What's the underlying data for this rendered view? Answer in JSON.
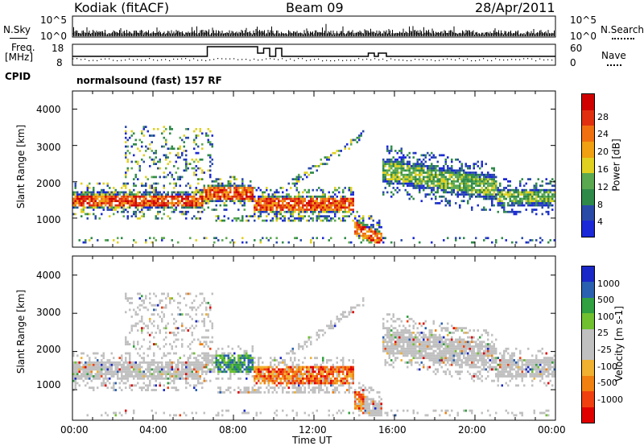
{
  "header": {
    "station": "Kodiak (fitACF)",
    "beam": "Beam 09",
    "date": "28/Apr/2011"
  },
  "top_panels": {
    "nsky_label": "N.Sky",
    "nsky_ticks": [
      "10^5",
      "10^0"
    ],
    "nsearch_label": "N.Search",
    "nsearch_ticks": [
      "10^5",
      "10^0"
    ],
    "freq_label": "Freq.",
    "freq_unit": "[MHz]",
    "freq_ticks": [
      "18",
      "8"
    ],
    "nave_label": "Nave",
    "nave_ticks": [
      "60",
      "0"
    ],
    "cpid_label": "CPID",
    "cpid_text": "normalsound (fast) 157 RF"
  },
  "colors": {
    "power_scale": [
      "#1a28d8",
      "#2a4aa8",
      "#2f8a4a",
      "#5aa850",
      "#e0d020",
      "#f0a010",
      "#f07010",
      "#e03010",
      "#d00000"
    ],
    "velocity_scale": [
      "#e00000",
      "#f04010",
      "#f08010",
      "#f0b030",
      "#c0c0c0",
      "#c0c0c0",
      "#70c030",
      "#30a040",
      "#2a60b0",
      "#1a28c8"
    ]
  },
  "chart_data": [
    {
      "type": "heatmap",
      "name": "power",
      "ylabel": "Slant Range [km]",
      "yticks": [
        "4000",
        "3000",
        "2000",
        "1000"
      ],
      "ylim": [
        200,
        4500
      ],
      "xlim_hours": [
        0,
        24
      ],
      "colorbar_label": "Power [dB]",
      "colorbar_ticks": [
        "28",
        "24",
        "20",
        "16",
        "12",
        "8",
        "4"
      ],
      "colorbar_range": [
        0,
        32
      ]
    },
    {
      "type": "heatmap",
      "name": "velocity",
      "ylabel": "Slant Range [km]",
      "yticks": [
        "4000",
        "3000",
        "2000",
        "1000"
      ],
      "ylim": [
        200,
        4500
      ],
      "xlim_hours": [
        0,
        24
      ],
      "colorbar_label": "Velocity [m s-1]",
      "colorbar_ticks": [
        "1000",
        "500",
        "100",
        "25",
        "-25",
        "-100",
        "-500",
        "-1000"
      ]
    }
  ],
  "x_axis": {
    "ticks": [
      "00:00",
      "04:00",
      "08:00",
      "12:00",
      "16:00",
      "20:00",
      "00:00"
    ],
    "label": "Time UT"
  }
}
